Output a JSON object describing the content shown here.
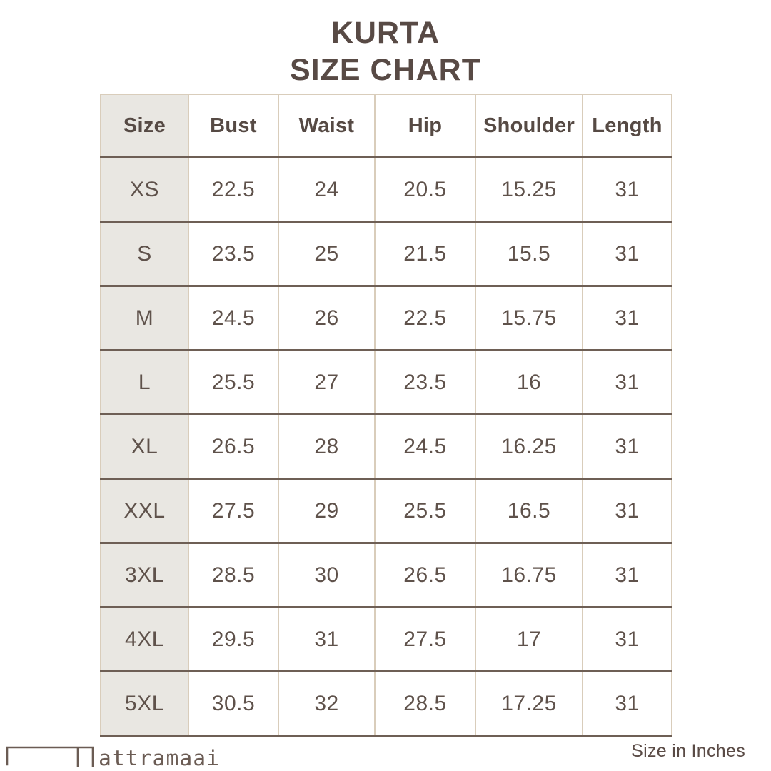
{
  "page": {
    "title_line1": "KURTA",
    "title_line2": "SIZE CHART"
  },
  "chart_data": {
    "type": "table",
    "title": "KURTA SIZE CHART",
    "columns": [
      "Size",
      "Bust",
      "Waist",
      "Hip",
      "Shoulder",
      "Length"
    ],
    "rows": [
      [
        "XS",
        "22.5",
        "24",
        "20.5",
        "15.25",
        "31"
      ],
      [
        "S",
        "23.5",
        "25",
        "21.5",
        "15.5",
        "31"
      ],
      [
        "M",
        "24.5",
        "26",
        "22.5",
        "15.75",
        "31"
      ],
      [
        "L",
        "25.5",
        "27",
        "23.5",
        "16",
        "31"
      ],
      [
        "XL",
        "26.5",
        "28",
        "24.5",
        "16.25",
        "31"
      ],
      [
        "XXL",
        "27.5",
        "29",
        "25.5",
        "16.5",
        "31"
      ],
      [
        "3XL",
        "28.5",
        "30",
        "26.5",
        "16.75",
        "31"
      ],
      [
        "4XL",
        "29.5",
        "31",
        "27.5",
        "17",
        "31"
      ],
      [
        "5XL",
        "30.5",
        "32",
        "28.5",
        "17.25",
        "31"
      ]
    ],
    "units_note": "Size in Inches"
  },
  "footer": {
    "brand_text": "attramaai",
    "units_note": "Size in Inches"
  },
  "colors": {
    "background": "#ffffff",
    "title_text": "#584a45",
    "header_text": "#564a44",
    "cell_text": "#5f524b",
    "row_divider": "#6e5f55",
    "column_divider": "#d9cdbb",
    "size_column_bg": "#e9e7e2",
    "logo": "#6b5c54"
  }
}
